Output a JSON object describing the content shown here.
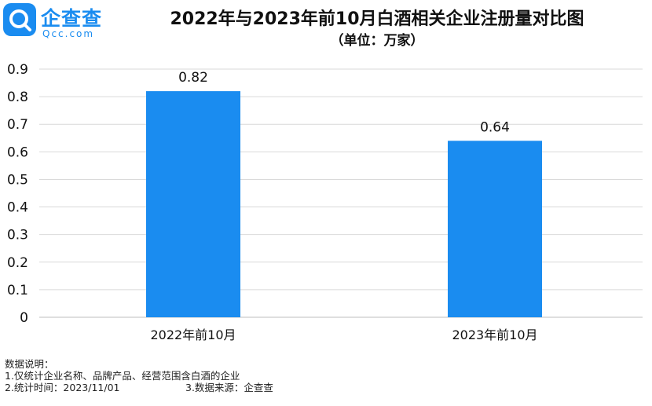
{
  "logo": {
    "name": "企查查",
    "domain": "Qcc.com"
  },
  "chart_data": {
    "type": "bar",
    "title": "2022年与2023年前10月白酒相关企业注册量对比图",
    "subtitle": "（单位：万家）",
    "categories": [
      "2022年前10月",
      "2023年前10月"
    ],
    "values": [
      0.82,
      0.64
    ],
    "value_labels": [
      "0.82",
      "0.64"
    ],
    "ylim": [
      0,
      0.9
    ],
    "yticks": [
      "0",
      "0.1",
      "0.2",
      "0.3",
      "0.4",
      "0.5",
      "0.6",
      "0.7",
      "0.8",
      "0.9"
    ],
    "grid": true,
    "bar_color": "#1a8cf0"
  },
  "notes": {
    "heading": "数据说明：",
    "line1": "1.仅统计企业名称、品牌产品、经营范围含白酒的企业",
    "line2_left": "2.统计时间：2023/11/01",
    "line2_right": "3.数据来源：企查查"
  }
}
